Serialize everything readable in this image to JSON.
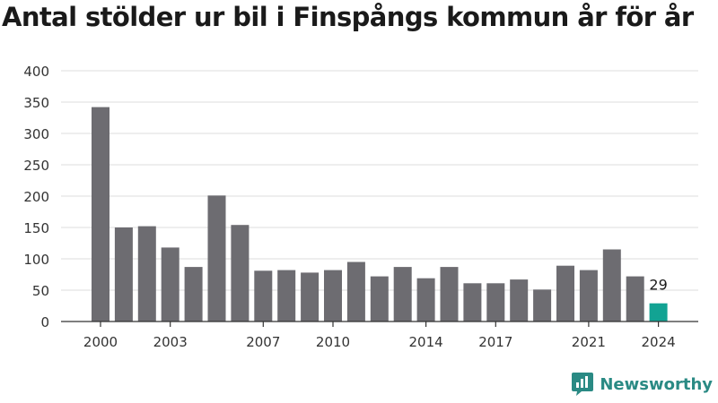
{
  "chart_data": {
    "type": "bar",
    "title": "Antal stölder ur bil i Finspångs kommun år för år",
    "categories": [
      "2000",
      "2001",
      "2002",
      "2003",
      "2004",
      "2005",
      "2006",
      "2007",
      "2008",
      "2009",
      "2010",
      "2011",
      "2012",
      "2013",
      "2014",
      "2015",
      "2016",
      "2017",
      "2018",
      "2019",
      "2020",
      "2021",
      "2022",
      "2023",
      "2024"
    ],
    "values": [
      342,
      150,
      152,
      118,
      87,
      201,
      154,
      81,
      82,
      78,
      82,
      95,
      72,
      87,
      69,
      87,
      61,
      61,
      67,
      51,
      89,
      82,
      115,
      72,
      29
    ],
    "x_tick_labels": [
      "2000",
      "2003",
      "2007",
      "2010",
      "2014",
      "2017",
      "2021",
      "2024"
    ],
    "ylim": [
      0,
      400
    ],
    "y_ticks": [
      0,
      50,
      100,
      150,
      200,
      250,
      300,
      350,
      400
    ],
    "grid": true,
    "colors": {
      "bar": "#6d6c71",
      "highlight": "#12a393",
      "grid": "#dcdcdc",
      "axis": "#333333"
    },
    "annotation": {
      "category": "2024",
      "text": "29"
    }
  },
  "brand": {
    "name": "Newsworthy",
    "icon": "newsworthy-logo-icon"
  }
}
